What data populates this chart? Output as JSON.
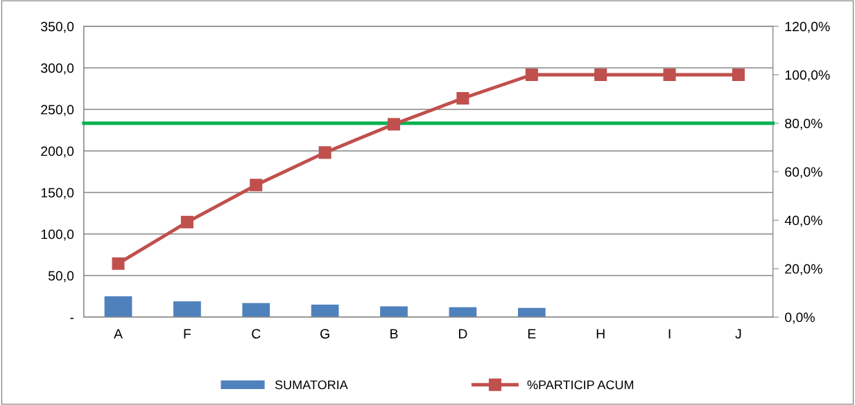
{
  "chart_data": {
    "type": "bar",
    "categories": [
      "A",
      "F",
      "C",
      "G",
      "B",
      "D",
      "E",
      "H",
      "I",
      "J"
    ],
    "series": [
      {
        "name": "SUMATORIA",
        "color": "#4f81bd",
        "values": [
          25,
          19,
          17,
          15,
          13,
          12,
          11,
          0,
          0,
          0
        ]
      },
      {
        "name": "%PARTICIP ACUM",
        "type": "line",
        "axis": "y2",
        "color": "#c0504d",
        "marker": "square",
        "values": [
          22.1,
          39.2,
          54.5,
          67.9,
          79.6,
          90.3,
          100,
          100,
          100,
          100
        ]
      }
    ],
    "ylim": [
      0,
      350
    ],
    "yticks": [
      {
        "value": 0,
        "label": "-"
      },
      {
        "value": 50,
        "label": "50,0"
      },
      {
        "value": 100,
        "label": "100,0"
      },
      {
        "value": 150,
        "label": "150,0"
      },
      {
        "value": 200,
        "label": "200,0"
      },
      {
        "value": 250,
        "label": "250,0"
      },
      {
        "value": 300,
        "label": "300,0"
      },
      {
        "value": 350,
        "label": "350,0"
      }
    ],
    "y2lim": [
      0,
      120
    ],
    "y2ticks": [
      {
        "value": 0,
        "label": "0,0%"
      },
      {
        "value": 20,
        "label": "20,0%"
      },
      {
        "value": 40,
        "label": "40,0%"
      },
      {
        "value": 60,
        "label": "60,0%"
      },
      {
        "value": 80,
        "label": "80,0%"
      },
      {
        "value": 100,
        "label": "100,0%"
      },
      {
        "value": 120,
        "label": "120,0%"
      }
    ],
    "ref_lines": [
      {
        "axis": "y2",
        "value": 80,
        "color": "#00b050"
      }
    ],
    "grid": "y",
    "legend": "bottom"
  }
}
